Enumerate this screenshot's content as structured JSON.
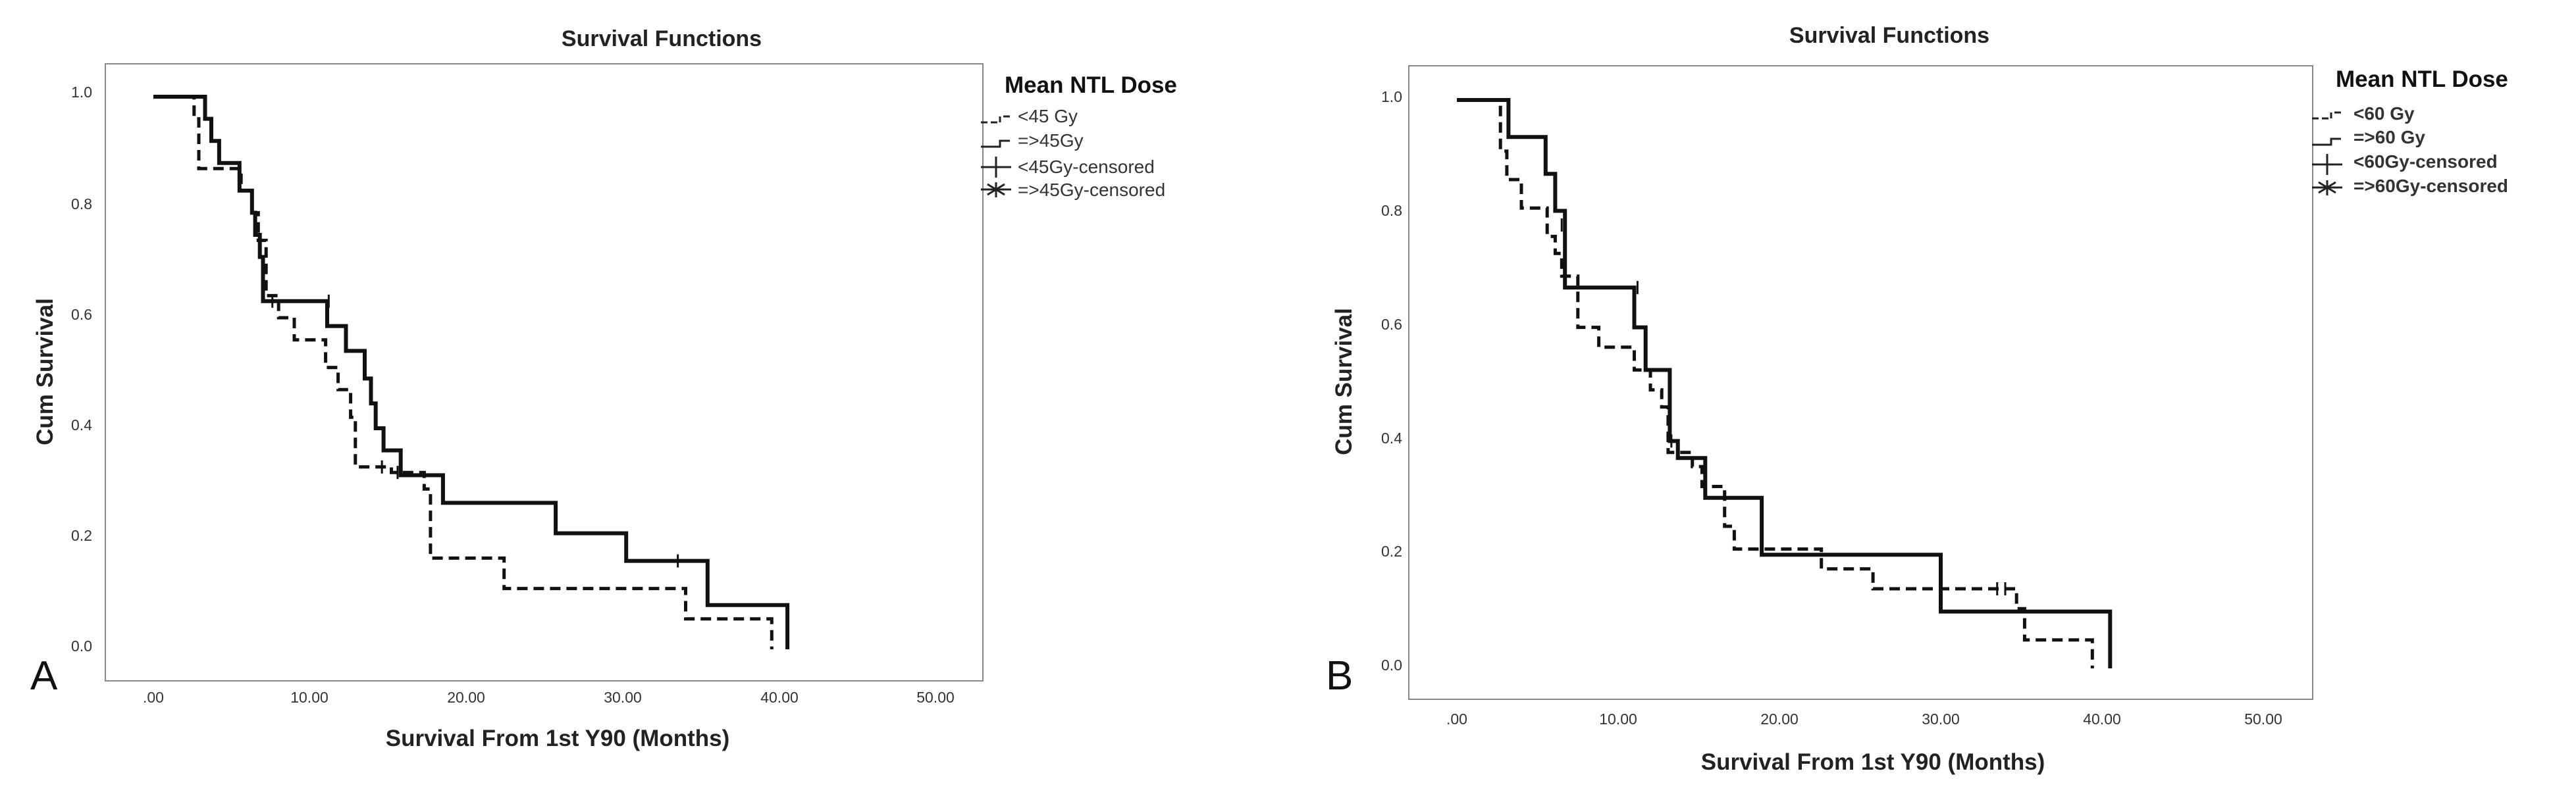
{
  "chart_data": [
    {
      "type": "line",
      "step": true,
      "panel_label": "A",
      "title": "Survival Functions",
      "xlabel": "Survival From 1st Y90 (Months)",
      "ylabel": "Cum Survival",
      "xlim": [
        -3,
        52
      ],
      "ylim": [
        -0.05,
        1.05
      ],
      "x_ticks": [
        0,
        10,
        20,
        30,
        40,
        50
      ],
      "x_tick_labels": [
        ".00",
        "10.00",
        "20.00",
        "30.00",
        "40.00",
        "50.00"
      ],
      "y_ticks": [
        0.0,
        0.2,
        0.4,
        0.6,
        0.8,
        1.0
      ],
      "y_tick_labels": [
        "0.0",
        "0.2",
        "0.4",
        "0.6",
        "0.8",
        "1.0"
      ],
      "legend": {
        "title": "Mean NTL Dose",
        "position": "top-right",
        "bold_entries": false,
        "entries": [
          "<45 Gy",
          "=>45Gy",
          "<45Gy-censored",
          "=>45Gy-censored"
        ]
      },
      "series": [
        {
          "name": "<45 Gy",
          "style": "dashed",
          "points": [
            [
              0,
              1.0
            ],
            [
              2.6,
              1.0
            ],
            [
              2.6,
              0.96
            ],
            [
              2.9,
              0.96
            ],
            [
              2.9,
              0.87
            ],
            [
              5.6,
              0.87
            ],
            [
              5.6,
              0.83
            ],
            [
              6.3,
              0.83
            ],
            [
              6.3,
              0.79
            ],
            [
              6.7,
              0.79
            ],
            [
              6.7,
              0.74
            ],
            [
              7.2,
              0.74
            ],
            [
              7.2,
              0.64
            ],
            [
              8.0,
              0.64
            ],
            [
              8.0,
              0.6
            ],
            [
              9.0,
              0.6
            ],
            [
              9.0,
              0.56
            ],
            [
              11.0,
              0.56
            ],
            [
              11.0,
              0.51
            ],
            [
              11.8,
              0.51
            ],
            [
              11.8,
              0.47
            ],
            [
              12.6,
              0.47
            ],
            [
              12.6,
              0.42
            ],
            [
              12.9,
              0.42
            ],
            [
              12.9,
              0.33
            ],
            [
              15.2,
              0.33
            ],
            [
              15.2,
              0.32
            ],
            [
              17.3,
              0.32
            ],
            [
              17.3,
              0.29
            ],
            [
              17.7,
              0.29
            ],
            [
              17.7,
              0.165
            ],
            [
              22.4,
              0.165
            ],
            [
              22.4,
              0.11
            ],
            [
              34.0,
              0.11
            ],
            [
              34.0,
              0.055
            ],
            [
              39.5,
              0.055
            ],
            [
              39.5,
              0.0
            ]
          ],
          "censored": [
            [
              14.6,
              0.33
            ],
            [
              15.6,
              0.32
            ]
          ]
        },
        {
          "name": "=>45Gy",
          "style": "solid",
          "points": [
            [
              0,
              1.0
            ],
            [
              3.3,
              1.0
            ],
            [
              3.3,
              0.96
            ],
            [
              3.7,
              0.96
            ],
            [
              3.7,
              0.92
            ],
            [
              4.2,
              0.92
            ],
            [
              4.2,
              0.88
            ],
            [
              5.5,
              0.88
            ],
            [
              5.5,
              0.83
            ],
            [
              6.3,
              0.83
            ],
            [
              6.3,
              0.79
            ],
            [
              6.5,
              0.79
            ],
            [
              6.5,
              0.75
            ],
            [
              6.8,
              0.75
            ],
            [
              6.8,
              0.71
            ],
            [
              7.0,
              0.71
            ],
            [
              7.0,
              0.63
            ],
            [
              11.1,
              0.63
            ],
            [
              11.1,
              0.585
            ],
            [
              12.3,
              0.585
            ],
            [
              12.3,
              0.54
            ],
            [
              13.5,
              0.54
            ],
            [
              13.5,
              0.49
            ],
            [
              13.9,
              0.49
            ],
            [
              13.9,
              0.445
            ],
            [
              14.2,
              0.445
            ],
            [
              14.2,
              0.4
            ],
            [
              14.7,
              0.4
            ],
            [
              14.7,
              0.36
            ],
            [
              15.8,
              0.36
            ],
            [
              15.8,
              0.315
            ],
            [
              18.5,
              0.315
            ],
            [
              18.5,
              0.265
            ],
            [
              25.7,
              0.265
            ],
            [
              25.7,
              0.21
            ],
            [
              30.2,
              0.21
            ],
            [
              30.2,
              0.16
            ],
            [
              35.4,
              0.16
            ],
            [
              35.4,
              0.08
            ],
            [
              40.5,
              0.08
            ],
            [
              40.5,
              0.0
            ]
          ],
          "censored": [
            [
              7.6,
              0.63
            ],
            [
              11.2,
              0.63
            ],
            [
              33.5,
              0.16
            ]
          ]
        }
      ]
    },
    {
      "type": "line",
      "step": true,
      "panel_label": "B",
      "title": "Survival Functions",
      "xlabel": "Survival From 1st Y90 (Months)",
      "ylabel": "Cum Survival",
      "xlim": [
        -3,
        52
      ],
      "ylim": [
        -0.05,
        1.05
      ],
      "x_ticks": [
        0,
        10,
        20,
        30,
        40,
        50
      ],
      "x_tick_labels": [
        ".00",
        "10.00",
        "20.00",
        "30.00",
        "40.00",
        "50.00"
      ],
      "y_ticks": [
        0.0,
        0.2,
        0.4,
        0.6,
        0.8,
        1.0
      ],
      "y_tick_labels": [
        "0.0",
        "0.2",
        "0.4",
        "0.6",
        "0.8",
        "1.0"
      ],
      "legend": {
        "title": "Mean NTL Dose",
        "position": "top-right",
        "bold_entries": true,
        "entries": [
          "<60 Gy",
          "=>60 Gy",
          "<60Gy-censored",
          "=>60Gy-censored"
        ]
      },
      "series": [
        {
          "name": "<60 Gy",
          "style": "dashed",
          "points": [
            [
              0,
              1.0
            ],
            [
              2.7,
              1.0
            ],
            [
              2.7,
              0.91
            ],
            [
              3.1,
              0.91
            ],
            [
              3.1,
              0.86
            ],
            [
              4.0,
              0.86
            ],
            [
              4.0,
              0.81
            ],
            [
              5.6,
              0.81
            ],
            [
              5.6,
              0.76
            ],
            [
              6.1,
              0.76
            ],
            [
              6.1,
              0.73
            ],
            [
              6.5,
              0.73
            ],
            [
              6.5,
              0.69
            ],
            [
              7.5,
              0.69
            ],
            [
              7.5,
              0.6
            ],
            [
              8.8,
              0.6
            ],
            [
              8.8,
              0.565
            ],
            [
              11.0,
              0.565
            ],
            [
              11.0,
              0.525
            ],
            [
              12.0,
              0.525
            ],
            [
              12.0,
              0.49
            ],
            [
              12.7,
              0.49
            ],
            [
              12.7,
              0.46
            ],
            [
              13.1,
              0.46
            ],
            [
              13.1,
              0.38
            ],
            [
              14.6,
              0.38
            ],
            [
              14.6,
              0.355
            ],
            [
              15.2,
              0.355
            ],
            [
              15.2,
              0.32
            ],
            [
              16.6,
              0.32
            ],
            [
              16.6,
              0.25
            ],
            [
              17.2,
              0.25
            ],
            [
              17.2,
              0.21
            ],
            [
              22.6,
              0.21
            ],
            [
              22.6,
              0.175
            ],
            [
              25.8,
              0.175
            ],
            [
              25.8,
              0.14
            ],
            [
              34.7,
              0.14
            ],
            [
              34.7,
              0.105
            ],
            [
              35.2,
              0.105
            ],
            [
              35.2,
              0.05
            ],
            [
              39.4,
              0.05
            ],
            [
              39.4,
              0.0
            ]
          ],
          "censored": [
            [
              33.5,
              0.14
            ]
          ]
        },
        {
          "name": "=>60 Gy",
          "style": "solid",
          "points": [
            [
              0,
              1.0
            ],
            [
              3.2,
              1.0
            ],
            [
              3.2,
              0.935
            ],
            [
              5.5,
              0.935
            ],
            [
              5.5,
              0.87
            ],
            [
              6.1,
              0.87
            ],
            [
              6.1,
              0.805
            ],
            [
              6.7,
              0.805
            ],
            [
              6.7,
              0.67
            ],
            [
              11.0,
              0.67
            ],
            [
              11.0,
              0.6
            ],
            [
              11.7,
              0.6
            ],
            [
              11.7,
              0.525
            ],
            [
              13.2,
              0.525
            ],
            [
              13.2,
              0.4
            ],
            [
              13.7,
              0.4
            ],
            [
              13.7,
              0.37
            ],
            [
              15.4,
              0.37
            ],
            [
              15.4,
              0.3
            ],
            [
              18.9,
              0.3
            ],
            [
              18.9,
              0.2
            ],
            [
              30.0,
              0.2
            ],
            [
              30.0,
              0.1
            ],
            [
              40.5,
              0.1
            ],
            [
              40.5,
              0.0
            ]
          ],
          "censored": [
            [
              6.5,
              0.78
            ],
            [
              11.2,
              0.67
            ],
            [
              13.3,
              0.4
            ],
            [
              34.0,
              0.14
            ]
          ]
        }
      ]
    }
  ]
}
